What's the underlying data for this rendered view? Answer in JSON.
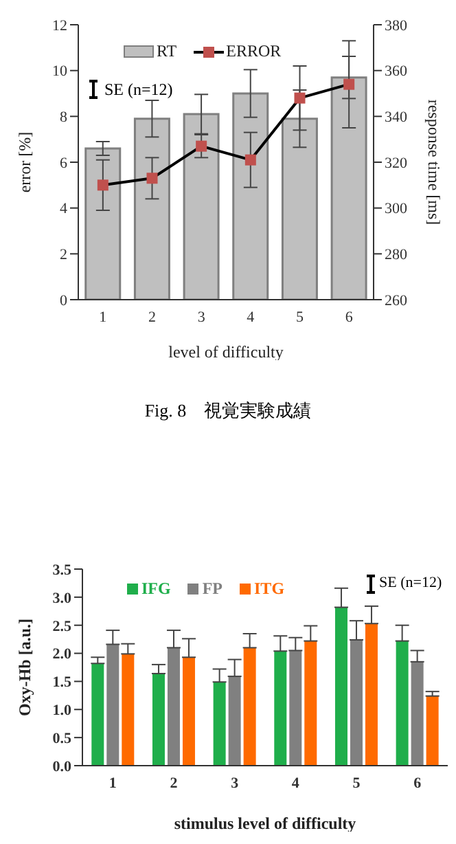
{
  "chart_data": [
    {
      "type": "bar",
      "categories": [
        "1",
        "2",
        "3",
        "4",
        "5",
        "6"
      ],
      "xlabel": "level of difficulty",
      "ylabel": "error [%]",
      "y2label": "response time [ms]",
      "series": [
        {
          "name": "RT",
          "type": "bar",
          "axis": "y2",
          "color": "#bfbfbf",
          "values": [
            326,
            339,
            341,
            350,
            339,
            357
          ],
          "errors": [
            3,
            8,
            8.6,
            10.4,
            12.5,
            9.2
          ]
        },
        {
          "name": "ERROR",
          "type": "line",
          "color": "#000000",
          "colors": [
            "#c0504d",
            "#c0504d",
            "#c0504d",
            "#c0504d",
            "#c0504d",
            "#c0504d"
          ],
          "values": [
            5.0,
            5.3,
            6.7,
            6.1,
            8.8,
            9.4
          ],
          "errors": [
            1.1,
            0.9,
            0.5,
            1.2,
            1.4,
            1.9
          ]
        }
      ],
      "ylim": [
        0,
        12
      ],
      "yticks": [
        0,
        2,
        4,
        6,
        8,
        10,
        12
      ],
      "y2lim": [
        260,
        380
      ],
      "y2ticks": [
        260,
        280,
        300,
        320,
        340,
        360,
        380
      ],
      "marker": "square",
      "grid": false,
      "legend": "top",
      "annotations": [
        "SE (n=12)",
        "Fig. 8　視覚実験成績"
      ]
    },
    {
      "type": "bar",
      "categories": [
        "1",
        "2",
        "3",
        "4",
        "5",
        "6"
      ],
      "xlabel": "stimulus level of difficulty",
      "ylabel": "Oxy-Hb [a.u.]",
      "series": [
        {
          "name": "IFG",
          "color": "#1fae4b",
          "values": [
            1.82,
            1.64,
            1.49,
            2.04,
            2.82,
            2.22
          ],
          "errors": [
            [
              1.82,
              1.93
            ],
            [
              1.64,
              1.8
            ],
            [
              1.49,
              1.72
            ],
            [
              2.04,
              2.31
            ],
            [
              2.82,
              3.16
            ],
            [
              2.22,
              2.5
            ]
          ]
        },
        {
          "name": "FP",
          "color": "#808080",
          "values": [
            2.16,
            2.1,
            1.59,
            2.05,
            2.24,
            1.85
          ],
          "errors": [
            [
              2.16,
              2.41
            ],
            [
              2.1,
              2.41
            ],
            [
              1.59,
              1.89
            ],
            [
              2.05,
              2.28
            ],
            [
              2.24,
              2.58
            ],
            [
              1.85,
              2.05
            ]
          ]
        },
        {
          "name": "ITG",
          "color": "#ff6a00",
          "values": [
            1.99,
            1.93,
            2.1,
            2.22,
            2.53,
            1.24
          ],
          "errors": [
            [
              1.99,
              2.17
            ],
            [
              1.93,
              2.26
            ],
            [
              2.1,
              2.35
            ],
            [
              2.22,
              2.49
            ],
            [
              2.53,
              2.84
            ],
            [
              1.24,
              1.32
            ]
          ]
        }
      ],
      "ylim": [
        0,
        3.5
      ],
      "yticks": [
        {
          "value": 0,
          "label": "0.0"
        },
        0.5,
        {
          "value": 1,
          "label": "1.0"
        },
        1.5,
        {
          "value": 2,
          "label": "2.0"
        },
        2.5,
        {
          "value": 3,
          "label": "3.0"
        },
        3.5
      ],
      "grid": false,
      "legend": "top left",
      "annotations": [
        "SE (n=12)"
      ]
    }
  ]
}
